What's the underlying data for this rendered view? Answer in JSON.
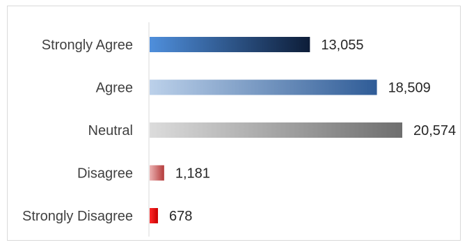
{
  "chart_data": {
    "type": "bar",
    "orientation": "horizontal",
    "categories": [
      "Strongly Agree",
      "Agree",
      "Neutral",
      "Disagree",
      "Strongly Disagree"
    ],
    "values": [
      13055,
      18509,
      20574,
      1181,
      678
    ],
    "value_labels": [
      "13,055",
      "18,509",
      "20,574",
      "1,181",
      "678"
    ],
    "xlim": [
      0,
      20574
    ],
    "grid": false,
    "legend": "none",
    "bar_gradients": [
      [
        "#4f8fdc",
        "#0d1d38"
      ],
      [
        "#bcd1ea",
        "#2f5c97"
      ],
      [
        "#dcdcdc",
        "#6e6e6e"
      ],
      [
        "#ecb3b3",
        "#b43a3a"
      ],
      [
        "#ff2a2a",
        "#c80000"
      ]
    ]
  }
}
